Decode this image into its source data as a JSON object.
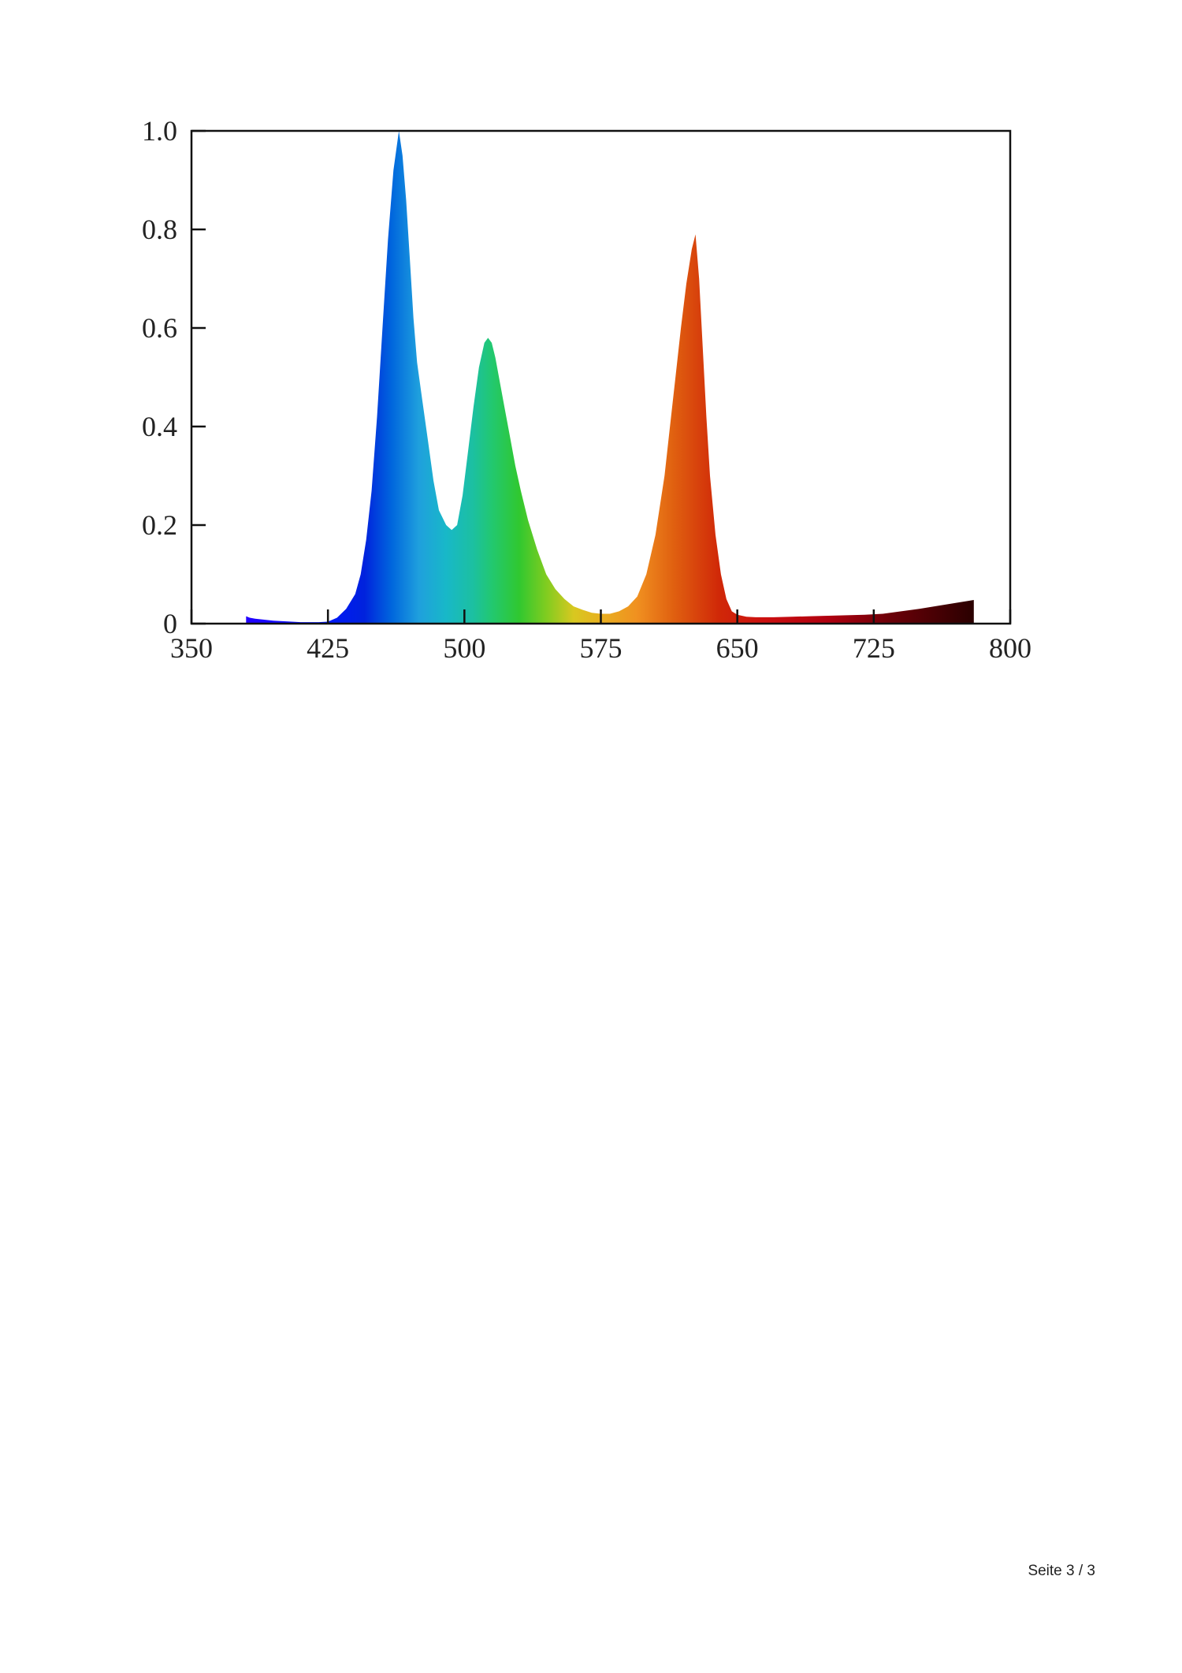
{
  "chart_data": {
    "type": "area",
    "title": "",
    "xlabel": "",
    "ylabel": "",
    "xlim": [
      350,
      800
    ],
    "ylim": [
      0,
      1.0
    ],
    "grid": false,
    "legend": "none",
    "x_ticks": [
      350,
      425,
      500,
      575,
      650,
      725,
      800
    ],
    "x_tick_labels": [
      "350",
      "425",
      "500",
      "575",
      "650",
      "725",
      "800"
    ],
    "y_ticks": [
      0,
      0.2,
      0.4,
      0.6,
      0.8,
      1.0
    ],
    "y_tick_labels": [
      "0",
      "0.2",
      "0.4",
      "0.6",
      "0.8",
      "1.0"
    ],
    "fill": "visible-spectrum gradient by wavelength",
    "series": [
      {
        "x": [
          380,
          382,
          385,
          390,
          395,
          400,
          405,
          410,
          415,
          420,
          425,
          430,
          435,
          440,
          443,
          446,
          449,
          452,
          455,
          458,
          461,
          464,
          466,
          468,
          470,
          472,
          474,
          477,
          480,
          483,
          486,
          490,
          493,
          496,
          499,
          502,
          505,
          508,
          511,
          513,
          515,
          517,
          519,
          522,
          525,
          528,
          531,
          535,
          540,
          545,
          550,
          555,
          560,
          565,
          570,
          575,
          580,
          585,
          590,
          595,
          600,
          605,
          610,
          613,
          616,
          619,
          622,
          625,
          627,
          629,
          631,
          633,
          635,
          638,
          641,
          644,
          647,
          650,
          655,
          660,
          670,
          680,
          690,
          700,
          710,
          720,
          730,
          740,
          750,
          760,
          770,
          780
        ],
        "y": [
          0.015,
          0.012,
          0.01,
          0.008,
          0.006,
          0.005,
          0.004,
          0.003,
          0.003,
          0.003,
          0.004,
          0.012,
          0.03,
          0.06,
          0.1,
          0.17,
          0.27,
          0.42,
          0.6,
          0.78,
          0.92,
          1.0,
          0.95,
          0.86,
          0.74,
          0.62,
          0.53,
          0.45,
          0.37,
          0.29,
          0.23,
          0.2,
          0.19,
          0.2,
          0.26,
          0.35,
          0.44,
          0.52,
          0.57,
          0.58,
          0.57,
          0.54,
          0.5,
          0.44,
          0.38,
          0.32,
          0.27,
          0.21,
          0.15,
          0.1,
          0.07,
          0.05,
          0.035,
          0.028,
          0.022,
          0.02,
          0.02,
          0.025,
          0.035,
          0.055,
          0.1,
          0.18,
          0.3,
          0.4,
          0.5,
          0.6,
          0.69,
          0.76,
          0.79,
          0.7,
          0.56,
          0.42,
          0.3,
          0.18,
          0.1,
          0.05,
          0.025,
          0.018,
          0.014,
          0.013,
          0.013,
          0.014,
          0.015,
          0.016,
          0.017,
          0.018,
          0.02,
          0.025,
          0.03,
          0.036,
          0.042,
          0.048
        ]
      }
    ]
  },
  "footer": {
    "page_label": "Seite 3 / 3"
  }
}
